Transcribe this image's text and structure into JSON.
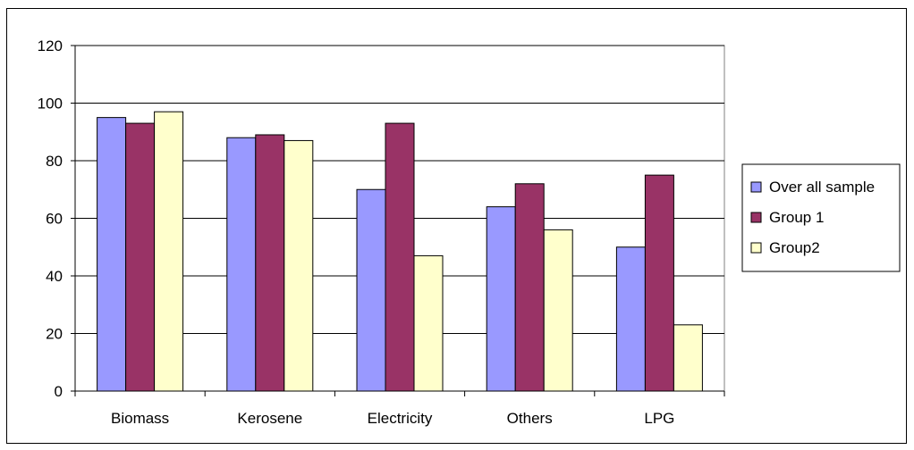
{
  "chart_data": {
    "type": "bar",
    "title": "",
    "xlabel": "",
    "ylabel": "",
    "ylim": [
      0,
      120
    ],
    "yticks": [
      0,
      20,
      40,
      60,
      80,
      100,
      120
    ],
    "grid": true,
    "legend_position": "right",
    "categories": [
      "Biomass",
      "Kerosene",
      "Electricity",
      "Others",
      "LPG"
    ],
    "series": [
      {
        "name": "Over all sample",
        "color": "#9999ff",
        "values": [
          95,
          88,
          70,
          64,
          50
        ]
      },
      {
        "name": "Group 1",
        "color": "#993366",
        "values": [
          93,
          89,
          93,
          72,
          75
        ]
      },
      {
        "name": "Group2",
        "color": "#ffffcc",
        "values": [
          97,
          87,
          47,
          56,
          23
        ]
      }
    ]
  }
}
